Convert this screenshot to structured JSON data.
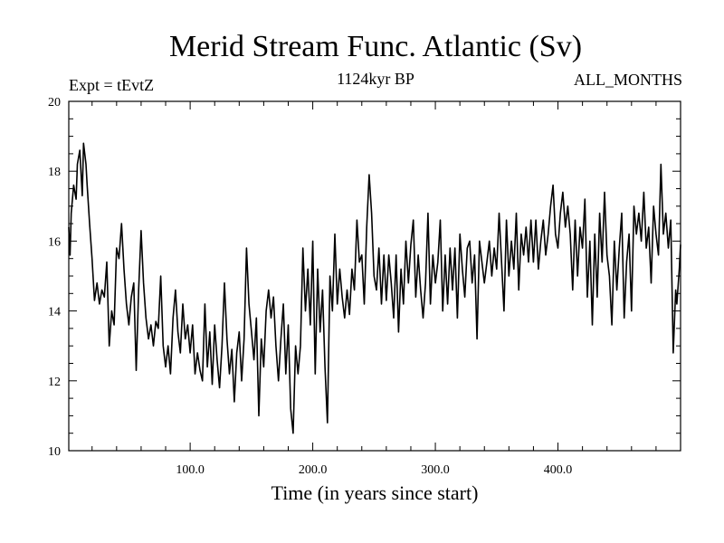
{
  "chart_data": {
    "type": "line",
    "title": "Merid Stream Func. Atlantic (Sv)",
    "subtitle_left": "Expt = tEvtZ",
    "subtitle_center": "1124kyr BP",
    "subtitle_right": "ALL_MONTHS",
    "xlabel": "Time (in years since start)",
    "ylabel": "",
    "xlim": [
      1,
      500
    ],
    "ylim": [
      10,
      20
    ],
    "x_ticks": [
      100,
      200,
      300,
      400
    ],
    "x_tick_labels": [
      "100.0",
      "200.0",
      "300.0",
      "400.0"
    ],
    "y_ticks": [
      10,
      12,
      14,
      16,
      18,
      20
    ],
    "y_tick_labels": [
      "10",
      "12",
      "14",
      "16",
      "18",
      "20"
    ],
    "series": [
      {
        "name": "Merid Stream Func. Atlantic",
        "x_start": 1,
        "x_step": 1,
        "keyframes": [
          [
            1,
            16.4
          ],
          [
            2,
            15.6
          ],
          [
            3,
            16.8
          ],
          [
            5,
            17.6
          ],
          [
            7,
            17.2
          ],
          [
            8,
            18.2
          ],
          [
            10,
            18.6
          ],
          [
            12,
            17.3
          ],
          [
            13,
            18.8
          ],
          [
            15,
            18.2
          ],
          [
            16,
            17.6
          ],
          [
            18,
            16.5
          ],
          [
            20,
            15.5
          ],
          [
            22,
            14.3
          ],
          [
            24,
            14.8
          ],
          [
            26,
            14.2
          ],
          [
            28,
            14.6
          ],
          [
            30,
            14.4
          ],
          [
            32,
            15.4
          ],
          [
            34,
            13.0
          ],
          [
            36,
            14.0
          ],
          [
            38,
            13.6
          ],
          [
            40,
            15.8
          ],
          [
            42,
            15.5
          ],
          [
            44,
            16.5
          ],
          [
            46,
            15.2
          ],
          [
            48,
            14.2
          ],
          [
            50,
            13.6
          ],
          [
            52,
            14.4
          ],
          [
            54,
            14.8
          ],
          [
            56,
            12.3
          ],
          [
            58,
            14.6
          ],
          [
            60,
            16.3
          ],
          [
            62,
            14.8
          ],
          [
            64,
            13.8
          ],
          [
            66,
            13.2
          ],
          [
            68,
            13.6
          ],
          [
            70,
            13.0
          ],
          [
            72,
            13.7
          ],
          [
            74,
            13.5
          ],
          [
            76,
            15.0
          ],
          [
            78,
            13.0
          ],
          [
            80,
            12.4
          ],
          [
            82,
            13.0
          ],
          [
            84,
            12.2
          ],
          [
            86,
            13.8
          ],
          [
            88,
            14.6
          ],
          [
            90,
            13.4
          ],
          [
            92,
            12.8
          ],
          [
            94,
            14.2
          ],
          [
            96,
            13.2
          ],
          [
            98,
            13.6
          ],
          [
            100,
            12.8
          ],
          [
            102,
            13.6
          ],
          [
            104,
            12.2
          ],
          [
            106,
            12.8
          ],
          [
            108,
            12.3
          ],
          [
            110,
            12.0
          ],
          [
            112,
            14.2
          ],
          [
            114,
            12.4
          ],
          [
            116,
            13.4
          ],
          [
            118,
            11.9
          ],
          [
            120,
            13.6
          ],
          [
            122,
            12.6
          ],
          [
            124,
            11.8
          ],
          [
            126,
            13.0
          ],
          [
            128,
            14.8
          ],
          [
            130,
            13.2
          ],
          [
            132,
            12.2
          ],
          [
            134,
            12.9
          ],
          [
            136,
            11.4
          ],
          [
            138,
            12.8
          ],
          [
            140,
            13.4
          ],
          [
            142,
            12.0
          ],
          [
            144,
            13.2
          ],
          [
            146,
            15.8
          ],
          [
            148,
            14.2
          ],
          [
            150,
            13.4
          ],
          [
            152,
            12.6
          ],
          [
            154,
            13.8
          ],
          [
            156,
            11.0
          ],
          [
            158,
            13.2
          ],
          [
            160,
            12.4
          ],
          [
            162,
            14.0
          ],
          [
            164,
            14.6
          ],
          [
            166,
            13.8
          ],
          [
            168,
            14.4
          ],
          [
            170,
            13.0
          ],
          [
            172,
            12.0
          ],
          [
            174,
            13.2
          ],
          [
            176,
            14.2
          ],
          [
            178,
            12.2
          ],
          [
            180,
            13.6
          ],
          [
            182,
            11.2
          ],
          [
            184,
            10.5
          ],
          [
            186,
            13.0
          ],
          [
            188,
            12.2
          ],
          [
            190,
            13.0
          ],
          [
            192,
            15.8
          ],
          [
            194,
            14.0
          ],
          [
            196,
            15.2
          ],
          [
            198,
            13.6
          ],
          [
            200,
            16.0
          ],
          [
            202,
            12.2
          ],
          [
            204,
            15.2
          ],
          [
            206,
            13.4
          ],
          [
            208,
            14.6
          ],
          [
            210,
            12.4
          ],
          [
            212,
            10.8
          ],
          [
            214,
            15.0
          ],
          [
            216,
            14.0
          ],
          [
            218,
            16.2
          ],
          [
            220,
            14.2
          ],
          [
            222,
            15.2
          ],
          [
            224,
            14.4
          ],
          [
            226,
            13.8
          ],
          [
            228,
            14.6
          ],
          [
            230,
            13.9
          ],
          [
            232,
            15.2
          ],
          [
            234,
            14.6
          ],
          [
            236,
            16.6
          ],
          [
            238,
            15.4
          ],
          [
            240,
            15.6
          ],
          [
            242,
            14.2
          ],
          [
            244,
            16.4
          ],
          [
            246,
            17.9
          ],
          [
            248,
            16.8
          ],
          [
            250,
            15.0
          ],
          [
            252,
            14.6
          ],
          [
            254,
            15.8
          ],
          [
            256,
            14.2
          ],
          [
            258,
            15.6
          ],
          [
            260,
            14.3
          ],
          [
            262,
            15.6
          ],
          [
            264,
            14.8
          ],
          [
            266,
            13.8
          ],
          [
            268,
            15.6
          ],
          [
            270,
            13.4
          ],
          [
            272,
            15.2
          ],
          [
            274,
            14.2
          ],
          [
            276,
            16.0
          ],
          [
            278,
            14.8
          ],
          [
            280,
            15.9
          ],
          [
            282,
            16.6
          ],
          [
            284,
            14.4
          ],
          [
            286,
            15.6
          ],
          [
            288,
            14.6
          ],
          [
            290,
            13.8
          ],
          [
            292,
            14.8
          ],
          [
            294,
            16.8
          ],
          [
            296,
            14.2
          ],
          [
            298,
            15.6
          ],
          [
            300,
            14.8
          ],
          [
            302,
            15.4
          ],
          [
            304,
            16.6
          ],
          [
            306,
            14.0
          ],
          [
            308,
            15.6
          ],
          [
            310,
            14.2
          ],
          [
            312,
            15.8
          ],
          [
            314,
            14.6
          ],
          [
            316,
            15.8
          ],
          [
            318,
            13.8
          ],
          [
            320,
            16.2
          ],
          [
            322,
            15.2
          ],
          [
            324,
            14.4
          ],
          [
            326,
            15.8
          ],
          [
            328,
            16.0
          ],
          [
            330,
            14.8
          ],
          [
            332,
            15.6
          ],
          [
            334,
            13.2
          ],
          [
            336,
            16.0
          ],
          [
            338,
            15.4
          ],
          [
            340,
            14.8
          ],
          [
            342,
            15.4
          ],
          [
            344,
            16.0
          ],
          [
            346,
            15.0
          ],
          [
            348,
            15.8
          ],
          [
            350,
            15.2
          ],
          [
            352,
            16.8
          ],
          [
            354,
            15.4
          ],
          [
            356,
            14.0
          ],
          [
            358,
            16.6
          ],
          [
            360,
            15.0
          ],
          [
            362,
            16.0
          ],
          [
            364,
            15.2
          ],
          [
            366,
            16.8
          ],
          [
            368,
            14.6
          ],
          [
            370,
            16.2
          ],
          [
            372,
            15.6
          ],
          [
            374,
            16.4
          ],
          [
            376,
            15.4
          ],
          [
            378,
            16.6
          ],
          [
            380,
            15.4
          ],
          [
            382,
            16.6
          ],
          [
            384,
            15.2
          ],
          [
            386,
            16.0
          ],
          [
            388,
            16.6
          ],
          [
            390,
            15.6
          ],
          [
            392,
            16.2
          ],
          [
            394,
            17.0
          ],
          [
            396,
            17.6
          ],
          [
            398,
            16.2
          ],
          [
            400,
            15.8
          ],
          [
            402,
            16.8
          ],
          [
            404,
            17.4
          ],
          [
            406,
            16.4
          ],
          [
            408,
            17.0
          ],
          [
            410,
            16.2
          ],
          [
            412,
            14.6
          ],
          [
            414,
            16.6
          ],
          [
            416,
            15.0
          ],
          [
            418,
            16.4
          ],
          [
            420,
            15.8
          ],
          [
            422,
            17.2
          ],
          [
            424,
            14.4
          ],
          [
            426,
            16.0
          ],
          [
            428,
            13.6
          ],
          [
            430,
            16.2
          ],
          [
            432,
            14.4
          ],
          [
            434,
            16.8
          ],
          [
            436,
            15.4
          ],
          [
            438,
            17.4
          ],
          [
            440,
            15.6
          ],
          [
            442,
            15.0
          ],
          [
            444,
            13.6
          ],
          [
            446,
            16.0
          ],
          [
            448,
            14.6
          ],
          [
            450,
            15.8
          ],
          [
            452,
            16.8
          ],
          [
            454,
            13.8
          ],
          [
            456,
            15.4
          ],
          [
            458,
            16.2
          ],
          [
            460,
            14.0
          ],
          [
            462,
            17.0
          ],
          [
            464,
            16.2
          ],
          [
            466,
            16.8
          ],
          [
            468,
            16.0
          ],
          [
            470,
            17.4
          ],
          [
            472,
            15.8
          ],
          [
            474,
            16.4
          ],
          [
            476,
            14.8
          ],
          [
            478,
            17.0
          ],
          [
            480,
            16.2
          ],
          [
            482,
            15.6
          ],
          [
            484,
            18.2
          ],
          [
            486,
            16.2
          ],
          [
            488,
            16.8
          ],
          [
            490,
            15.8
          ],
          [
            492,
            16.6
          ],
          [
            494,
            12.8
          ],
          [
            496,
            14.6
          ],
          [
            497,
            14.2
          ],
          [
            499,
            15.2
          ],
          [
            500,
            15.9
          ]
        ]
      }
    ]
  }
}
